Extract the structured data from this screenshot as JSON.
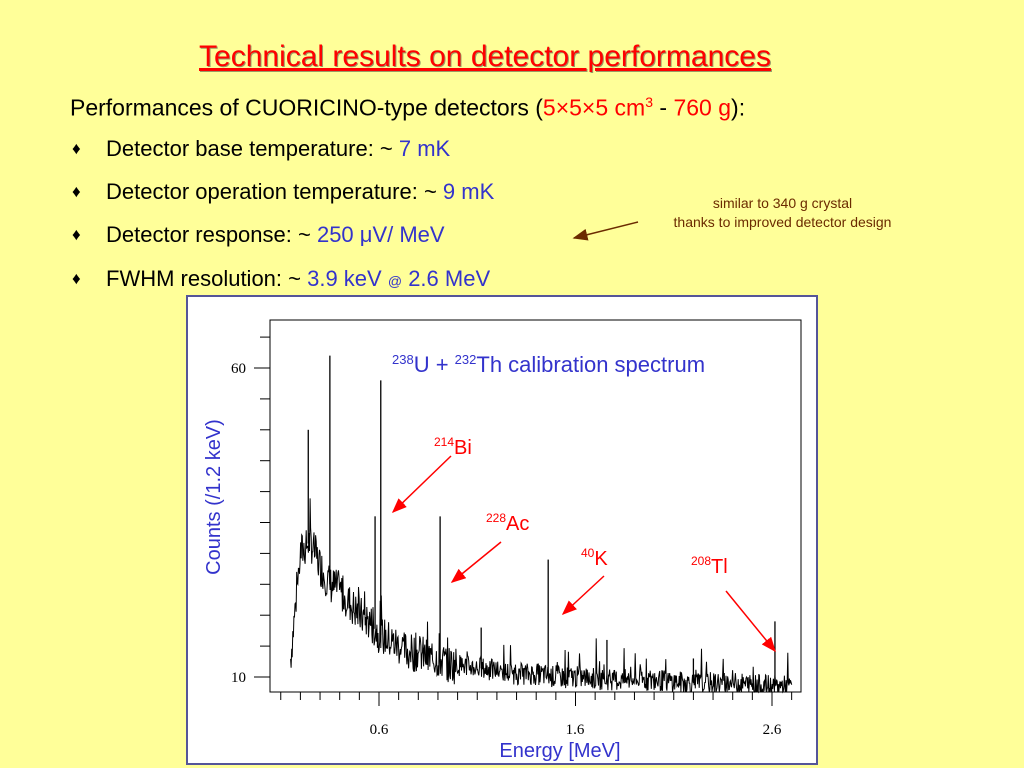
{
  "slide": {
    "title": "Technical results on detector performances",
    "subtitle": {
      "prefix": "Performances of CUORICINO-type detectors (",
      "dims": "5×5×5 cm",
      "dims_sup": "3",
      "sep": " - ",
      "mass": "760 g",
      "suffix": "):"
    },
    "bullets": [
      {
        "label": "Detector base temperature: ~ ",
        "value": "7 mK"
      },
      {
        "label": "Detector operation temperature: ~ ",
        "value": "9 mK"
      },
      {
        "label": "Detector response:   ~ ",
        "value": "250 μV/ MeV"
      },
      {
        "label": "FWHM resolution: ~ ",
        "value": "3.9 keV",
        "at": "@",
        "value2": "2.6 MeV"
      }
    ],
    "bullet_symbol": "♦",
    "note": {
      "line1": "similar to 340 g crystal",
      "line2": "thanks to improved detector design"
    },
    "colors": {
      "background": "#ffff99",
      "title": "#ff0000",
      "value": "#3333cc",
      "plot_text": "#3333cc",
      "peak_label": "#ff0000",
      "note": "#6b2b00"
    }
  },
  "chart_data": {
    "type": "line",
    "title": {
      "sup1": "238",
      "part1": "U + ",
      "sup2": "232",
      "part2": "Th calibration spectrum"
    },
    "xlabel": "Energy [MeV]",
    "ylabel": "Counts (/1.2 keV)",
    "x_ticks": [
      "0.6",
      "1.6",
      "2.6"
    ],
    "y_ticks": [
      "10",
      "60"
    ],
    "xlim": [
      0.1,
      2.8
    ],
    "ylim": [
      5,
      70
    ],
    "peaks": [
      {
        "sup": "214",
        "name": "Bi",
        "energy": 0.609,
        "counts": 58
      },
      {
        "sup": "228",
        "name": "Ac",
        "energy": 0.911,
        "counts": 36
      },
      {
        "sup": "40",
        "name": "K",
        "energy": 1.461,
        "counts": 29
      },
      {
        "sup": "208",
        "name": "Tl",
        "energy": 2.615,
        "counts": 19
      }
    ],
    "series": [
      {
        "x": [
          0.15,
          0.2,
          0.25,
          0.3,
          0.35,
          0.4,
          0.45,
          0.5,
          0.55,
          0.6,
          0.65,
          0.7,
          0.75,
          0.8,
          0.85,
          0.9,
          0.95,
          1.0,
          1.1,
          1.2,
          1.3,
          1.4,
          1.5,
          1.6,
          1.8,
          2.0,
          2.2,
          2.4,
          2.6,
          2.7
        ],
        "y": [
          13,
          30,
          32,
          28,
          25,
          24,
          22,
          20,
          19,
          17,
          16,
          15,
          14,
          14,
          13,
          13,
          12,
          12,
          11.5,
          11,
          10.5,
          10.5,
          10,
          10,
          9.5,
          9.5,
          9,
          9,
          8.5,
          8.5
        ]
      }
    ]
  }
}
